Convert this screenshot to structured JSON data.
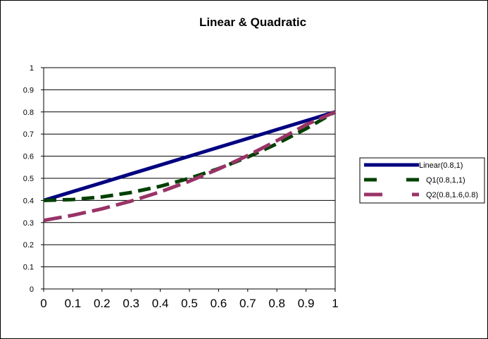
{
  "chart_data": {
    "type": "line",
    "title": "Linear & Quadratic",
    "xlabel": "",
    "ylabel": "",
    "xlim": [
      0,
      1
    ],
    "ylim": [
      0,
      1
    ],
    "x_ticks": [
      "0",
      "0.1",
      "0.2",
      "0.3",
      "0.4",
      "0.5",
      "0.6",
      "0.7",
      "0.8",
      "0.9",
      "1"
    ],
    "y_ticks": [
      "0",
      "0.1",
      "0.2",
      "0.3",
      "0.4",
      "0.5",
      "0.6",
      "0.7",
      "0.8",
      "0.9",
      "1"
    ],
    "grid": "horizontal",
    "legend_position": "right",
    "x": [
      0,
      0.1,
      0.2,
      0.3,
      0.4,
      0.5,
      0.6,
      0.7,
      0.8,
      0.9,
      1
    ],
    "series": [
      {
        "name": "Linear(0.8,1)",
        "color": "#000080",
        "dash": "solid",
        "values": [
          0.4,
          0.44,
          0.48,
          0.52,
          0.56,
          0.6,
          0.64,
          0.68,
          0.72,
          0.76,
          0.8
        ]
      },
      {
        "name": "Q1(0.8,1,1)",
        "color": "#004000",
        "dash": "dashed",
        "values": [
          0.4,
          0.404,
          0.416,
          0.436,
          0.464,
          0.5,
          0.544,
          0.596,
          0.656,
          0.724,
          0.8
        ]
      },
      {
        "name": "Q2(0.8,1.6,0.8)",
        "color": "#993366",
        "dash": "dashed",
        "values": [
          0.31,
          0.333,
          0.362,
          0.397,
          0.439,
          0.487,
          0.542,
          0.603,
          0.67,
          0.742,
          0.8
        ]
      }
    ]
  }
}
